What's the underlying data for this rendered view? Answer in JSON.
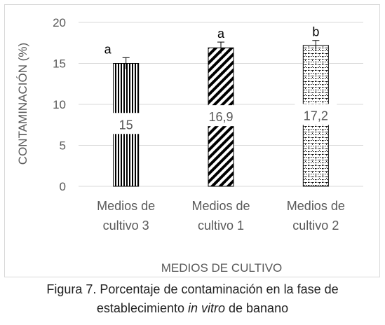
{
  "chart_data": {
    "type": "bar",
    "categories": [
      "Medios de cultivo 3",
      "Medios de cultivo 1",
      "Medios de cultivo 2"
    ],
    "category_lines": [
      [
        "Medios de",
        "cultivo 3"
      ],
      [
        "Medios de",
        "cultivo 1"
      ],
      [
        "Medios de",
        "cultivo 2"
      ]
    ],
    "values": [
      15,
      16.9,
      17.2
    ],
    "value_labels": [
      "15",
      "16,9",
      "17,2"
    ],
    "error": [
      0.7,
      0.7,
      0.6
    ],
    "letters": [
      "a",
      "a",
      "b"
    ],
    "patterns": [
      "vertical-lines",
      "diagonal-stripes",
      "brick"
    ],
    "xlabel": "MEDIOS DE CULTIVO",
    "ylabel": "CONTAMINACIÓN (%)",
    "ylim": [
      0,
      20
    ],
    "yticks": [
      0,
      5,
      10,
      15,
      20
    ],
    "grid": true,
    "colors": {
      "bar_fill": "#000000",
      "bar_background": "#ffffff",
      "grid": "#d9d9d9",
      "text": "#595959"
    }
  },
  "caption": {
    "line1": "Figura 7. Porcentaje de contaminación en la fase de",
    "line2_before": "establecimiento ",
    "line2_italic": "in vitro",
    "line2_after": " de banano"
  }
}
